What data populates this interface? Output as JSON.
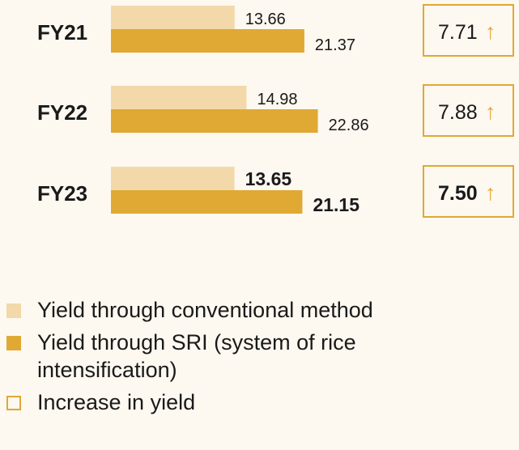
{
  "colors": {
    "conventional": "#f3d9aa",
    "sri": "#dfa934",
    "increase_border": "#dfa934",
    "arrow": "#dfa934",
    "background": "#fdf8f0"
  },
  "chart_data": {
    "type": "bar",
    "orientation": "horizontal",
    "categories": [
      "FY21",
      "FY22",
      "FY23"
    ],
    "series": [
      {
        "name": "Yield through conventional method",
        "values": [
          13.66,
          14.98,
          13.65
        ]
      },
      {
        "name": "Yield through SRI (system of rice intensification)",
        "values": [
          21.37,
          22.86,
          21.15
        ]
      }
    ],
    "value_labels": {
      "conventional": [
        "13.66",
        "14.98",
        "13.65"
      ],
      "sri": [
        "21.37",
        "22.86",
        "21.15"
      ]
    },
    "increase": {
      "name": "Increase in yield",
      "values": [
        7.71,
        7.88,
        7.5
      ],
      "labels": [
        "7.71",
        "7.88",
        "7.50"
      ],
      "icon": "arrow-up-icon",
      "arrow_glyph": "↑"
    },
    "highlight_category": "FY23",
    "legend": [
      "Yield through conventional method",
      "Yield through SRI (system of rice intensification)",
      "Increase in yield"
    ],
    "legend_position": "bottom-left",
    "grid": false
  }
}
